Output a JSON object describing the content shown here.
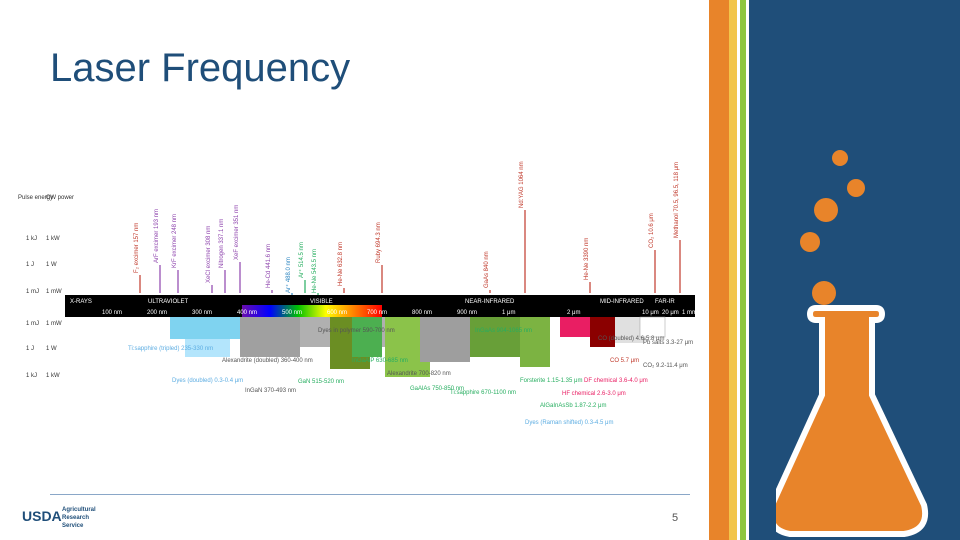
{
  "title": "Laser Frequency",
  "page_number": "5",
  "logo": {
    "mark": "USDA",
    "org_lines": [
      "Agricultural",
      "Research",
      "Service"
    ]
  },
  "colors": {
    "title": "#1f4e79",
    "orange": "#e8842a",
    "yellow": "#f2c54a",
    "green": "#8dc63f",
    "blue": "#1f4e79"
  },
  "figure": {
    "left_axis_headers": [
      "Pulse energy",
      "CW power"
    ],
    "upper_axis": [
      {
        "pulse": "1 kJ",
        "cw": "1 kW"
      },
      {
        "pulse": "1 J",
        "cw": "1 W"
      },
      {
        "pulse": "1 mJ",
        "cw": "1 mW"
      }
    ],
    "lower_axis": [
      {
        "pulse": "1 mJ",
        "cw": "1 mW"
      },
      {
        "pulse": "1 J",
        "cw": "1 W"
      },
      {
        "pulse": "1 kJ",
        "cw": "1 kW"
      }
    ],
    "bands": [
      {
        "label": "X-RAYS",
        "color": "#000000"
      },
      {
        "label": "ULTRAVIOLET",
        "color": "#000000"
      },
      {
        "label": "VISIBLE",
        "color": "#000000"
      },
      {
        "label": "NEAR-INFRARED",
        "color": "#000000"
      },
      {
        "label": "MID-INFRARED",
        "color": "#000000"
      },
      {
        "label": "FAR-IR",
        "color": "#000000"
      }
    ],
    "wavelength_ticks": [
      "100 nm",
      "200 nm",
      "300 nm",
      "400 nm",
      "500 nm",
      "600 nm",
      "700 nm",
      "800 nm",
      "900 nm",
      "1 μm",
      "2 μm",
      "10 μm",
      "20 μm",
      "1 mm"
    ],
    "upper_labels": [
      {
        "text": "F₂ excimer 157 nm",
        "color": "#c0392b"
      },
      {
        "text": "ArF excimer 193 nm",
        "color": "#8e44ad"
      },
      {
        "text": "KrF excimer 248 nm",
        "color": "#8e44ad"
      },
      {
        "text": "XeCl excimer 308 nm",
        "color": "#8e44ad"
      },
      {
        "text": "Nitrogen 337.1 nm",
        "color": "#8e44ad"
      },
      {
        "text": "XeF excimer 351 nm",
        "color": "#8e44ad"
      },
      {
        "text": "He-Cd 441.6 nm",
        "color": "#8e44ad"
      },
      {
        "text": "Ar⁺ 488.0 nm",
        "color": "#2e86c1"
      },
      {
        "text": "Ar⁺ 514.5 nm",
        "color": "#27ae60"
      },
      {
        "text": "He-Ne 543.5 nm",
        "color": "#27ae60"
      },
      {
        "text": "He-Ne 632.8 nm",
        "color": "#c0392b"
      },
      {
        "text": "Ruby 694.3 nm",
        "color": "#c0392b"
      },
      {
        "text": "GaAs 840 nm",
        "color": "#c0392b"
      },
      {
        "text": "Nd:YAG 1064 nm",
        "color": "#c0392b"
      },
      {
        "text": "He-Ne 3390 nm",
        "color": "#c0392b"
      },
      {
        "text": "CO₂ 10.6 μm",
        "color": "#c0392b"
      },
      {
        "text": "Methanol 70.5, 96.5, 118 μm",
        "color": "#c0392b"
      }
    ],
    "lower_labels": [
      {
        "text": "Ti:sapphire (tripled) 235-330 nm",
        "color": "#5dade2"
      },
      {
        "text": "Dyes (doubled) 0.3-0.4 μm",
        "color": "#5dade2"
      },
      {
        "text": "Alexandrite (doubled) 360-400 nm",
        "color": "#555555"
      },
      {
        "text": "InGaN 370-493 nm",
        "color": "#555555"
      },
      {
        "text": "Dyes in polymer 590-700 nm",
        "color": "#555555"
      },
      {
        "text": "GaN 515-520 nm",
        "color": "#27ae60"
      },
      {
        "text": "InGaAlP 630-685 nm",
        "color": "#27ae60"
      },
      {
        "text": "Alexandrite 700-820 nm",
        "color": "#555555"
      },
      {
        "text": "GaAlAs 750-850 nm",
        "color": "#27ae60"
      },
      {
        "text": "Ti:sapphire 670-1100 nm",
        "color": "#27ae60"
      },
      {
        "text": "InGaAs 904-1065 nm",
        "color": "#27ae60"
      },
      {
        "text": "Forsterite 1.15-1.35 μm",
        "color": "#27ae60"
      },
      {
        "text": "AlGaInAsSb 1.87-2.2 μm",
        "color": "#27ae60"
      },
      {
        "text": "Dyes (Raman shifted) 0.3-4.5 μm",
        "color": "#5dade2"
      },
      {
        "text": "CO (doubled) 4.6-5.8 μm",
        "color": "#555555"
      },
      {
        "text": "CO 5.7 μm",
        "color": "#c0392b"
      },
      {
        "text": "HF chemical 2.6-3.0 μm",
        "color": "#e91e63"
      },
      {
        "text": "DF chemical 3.6-4.0 μm",
        "color": "#e91e63"
      },
      {
        "text": "Pb salts 3.3-27 μm",
        "color": "#555555"
      },
      {
        "text": "CO₂ 9.2-11.4 μm",
        "color": "#555555"
      }
    ]
  }
}
